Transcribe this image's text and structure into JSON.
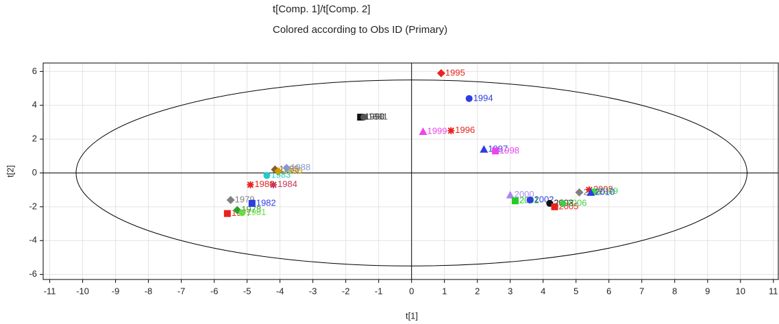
{
  "chart_data": {
    "type": "scatter",
    "title": "t[Comp. 1]/t[Comp. 2]",
    "subtitle": "Colored according to Obs ID (Primary)",
    "x_label": "t[1]",
    "y_label": "t[2]",
    "xlim": [
      -11.2,
      11.15
    ],
    "ylim": [
      -6.3,
      6.5
    ],
    "xticks": [
      -11,
      -10,
      -9,
      -8,
      -7,
      -6,
      -5,
      -4,
      -3,
      -2,
      -1,
      0,
      1,
      2,
      3,
      4,
      5,
      6,
      7,
      8,
      9,
      10,
      11
    ],
    "yticks": [
      -6,
      -4,
      -2,
      0,
      2,
      4,
      6
    ],
    "grid": true,
    "ellipse": {
      "rx": 10.2,
      "ry": 5.5
    },
    "points": [
      {
        "label": "1977",
        "x": -5.6,
        "y": -2.4,
        "color": "#e8231e",
        "marker": "square"
      },
      {
        "label": "1978",
        "x": -5.3,
        "y": -2.2,
        "color": "#2ca02c",
        "marker": "diamond"
      },
      {
        "label": "1979",
        "x": -5.5,
        "y": -1.6,
        "color": "#808080",
        "marker": "diamond"
      },
      {
        "label": "1980",
        "x": -4.9,
        "y": -0.7,
        "color": "#e8231e",
        "marker": "star"
      },
      {
        "label": "1981",
        "x": -5.15,
        "y": -2.35,
        "color": "#66dd44",
        "marker": "circle"
      },
      {
        "label": "1982",
        "x": -4.85,
        "y": -1.8,
        "color": "#2b3ee0",
        "marker": "square"
      },
      {
        "label": "1983",
        "x": -4.4,
        "y": -0.15,
        "color": "#22cccc",
        "marker": "circle"
      },
      {
        "label": "1984",
        "x": -4.2,
        "y": -0.7,
        "color": "#cc3355",
        "marker": "star"
      },
      {
        "label": "1985",
        "x": -4.15,
        "y": 0.2,
        "color": "#8b5a2b",
        "marker": "diamond"
      },
      {
        "label": "1986",
        "x": -4.05,
        "y": 0.1,
        "color": "#c8a000",
        "marker": "diamond"
      },
      {
        "label": "1988",
        "x": -3.8,
        "y": 0.3,
        "color": "#8899cc",
        "marker": "diamond"
      },
      {
        "label": "1990",
        "x": -1.55,
        "y": 3.3,
        "color": "#111111",
        "marker": "square"
      },
      {
        "label": "1991",
        "x": -1.45,
        "y": 3.3,
        "color": "#555555",
        "marker": "circle"
      },
      {
        "label": "1994",
        "x": 1.75,
        "y": 4.4,
        "color": "#2b3ee0",
        "marker": "circle"
      },
      {
        "label": "1995",
        "x": 0.9,
        "y": 5.9,
        "color": "#e8231e",
        "marker": "diamond"
      },
      {
        "label": "1996",
        "x": 1.2,
        "y": 2.5,
        "color": "#e8231e",
        "marker": "star"
      },
      {
        "label": "1997",
        "x": 2.2,
        "y": 1.4,
        "color": "#2b3ee0",
        "marker": "triangle"
      },
      {
        "label": "1998",
        "x": 2.55,
        "y": 1.3,
        "color": "#ee44ee",
        "marker": "square"
      },
      {
        "label": "1999",
        "x": 0.35,
        "y": 2.45,
        "color": "#ee44ee",
        "marker": "triangle"
      },
      {
        "label": "2000",
        "x": 3.0,
        "y": -1.3,
        "color": "#aa88ee",
        "marker": "triangle"
      },
      {
        "label": "2001",
        "x": 3.15,
        "y": -1.65,
        "color": "#22cc22",
        "marker": "square"
      },
      {
        "label": "2002",
        "x": 3.6,
        "y": -1.6,
        "color": "#2b3ee0",
        "marker": "circle"
      },
      {
        "label": "2003",
        "x": 4.2,
        "y": -1.8,
        "color": "#111111",
        "marker": "circle"
      },
      {
        "label": "2005",
        "x": 4.35,
        "y": -2.0,
        "color": "#e8231e",
        "marker": "square"
      },
      {
        "label": "2006",
        "x": 4.6,
        "y": -1.8,
        "color": "#44cc44",
        "marker": "diamond"
      },
      {
        "label": "2007",
        "x": 5.1,
        "y": -1.15,
        "color": "#808080",
        "marker": "diamond"
      },
      {
        "label": "2008",
        "x": 5.4,
        "y": -1.0,
        "color": "#e8231e",
        "marker": "star"
      },
      {
        "label": "2009",
        "x": 5.55,
        "y": -1.1,
        "color": "#44dd44",
        "marker": "circle"
      },
      {
        "label": "2010",
        "x": 5.45,
        "y": -1.15,
        "color": "#2b3ee0",
        "marker": "triangle"
      }
    ]
  }
}
